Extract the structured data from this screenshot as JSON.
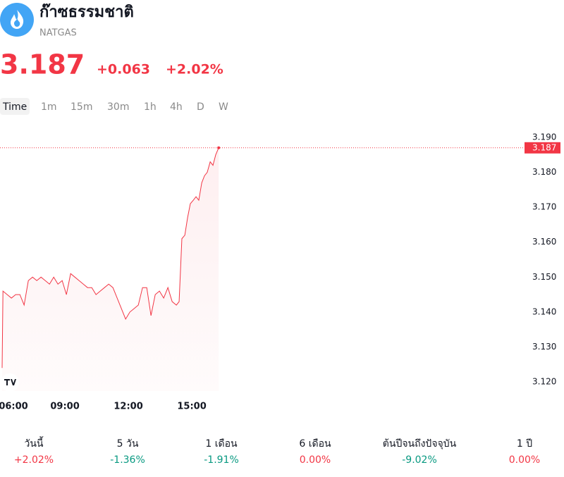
{
  "header": {
    "name": "ก๊าซธรรมชาติ",
    "symbol": "NATGAS",
    "price": "3.187",
    "change": "+0.063",
    "change_pct": "+2.02%"
  },
  "tabs": [
    "Time",
    "1m",
    "15m",
    "30m",
    "1h",
    "4h",
    "D",
    "W"
  ],
  "chart_data": {
    "type": "line",
    "color": "#f23645",
    "x": [
      6.03,
      6.07,
      6.27,
      6.47,
      6.67,
      6.87,
      7.07,
      7.27,
      7.47,
      7.67,
      7.87,
      8.07,
      8.27,
      8.47,
      8.67,
      8.87,
      9.07,
      9.27,
      9.47,
      9.67,
      9.87,
      10.07,
      10.27,
      10.47,
      10.67,
      10.87,
      11.07,
      11.27,
      11.47,
      11.67,
      11.87,
      12.07,
      12.27,
      12.47,
      12.67,
      12.87,
      13.07,
      13.27,
      13.47,
      13.67,
      13.87,
      14.07,
      14.27,
      14.4,
      14.53,
      14.67,
      14.8,
      14.93,
      15.07,
      15.2,
      15.33,
      15.47,
      15.6,
      15.73,
      15.87,
      16.0,
      16.13,
      16.27
    ],
    "values": [
      3.124,
      3.146,
      3.145,
      3.144,
      3.145,
      3.145,
      3.142,
      3.149,
      3.15,
      3.149,
      3.15,
      3.149,
      3.148,
      3.15,
      3.148,
      3.149,
      3.145,
      3.151,
      3.15,
      3.149,
      3.148,
      3.147,
      3.147,
      3.145,
      3.146,
      3.147,
      3.148,
      3.147,
      3.144,
      3.141,
      3.138,
      3.14,
      3.141,
      3.142,
      3.147,
      3.147,
      3.139,
      3.145,
      3.146,
      3.144,
      3.147,
      3.143,
      3.142,
      3.143,
      3.161,
      3.162,
      3.167,
      3.171,
      3.172,
      3.173,
      3.172,
      3.177,
      3.179,
      3.18,
      3.183,
      3.182,
      3.185,
      3.187
    ],
    "xlim": [
      5.93,
      30.6
    ],
    "xticks": [
      {
        "value": 6,
        "label": "06:00"
      },
      {
        "value": 9,
        "label": "09:00"
      },
      {
        "value": 12,
        "label": "12:00"
      },
      {
        "value": 15,
        "label": "15:00"
      }
    ],
    "ylim": [
      3.1174,
      3.192
    ],
    "yticks": [
      {
        "value": 3.12,
        "label": "3.120"
      },
      {
        "value": 3.13,
        "label": "3.130"
      },
      {
        "value": 3.14,
        "label": "3.140"
      },
      {
        "value": 3.15,
        "label": "3.150"
      },
      {
        "value": 3.16,
        "label": "3.160"
      },
      {
        "value": 3.17,
        "label": "3.170"
      },
      {
        "value": 3.18,
        "label": "3.180"
      },
      {
        "value": 3.19,
        "label": "3.190"
      }
    ],
    "price_line": {
      "value": 3.187,
      "label": "3.187"
    }
  },
  "performance": [
    {
      "label": "วันนี้",
      "value": "+2.02%",
      "color": "#f23645"
    },
    {
      "label": "5 วัน",
      "value": "-1.36%",
      "color": "#089981"
    },
    {
      "label": "1 เดือน",
      "value": "-1.91%",
      "color": "#089981"
    },
    {
      "label": "6 เดือน",
      "value": "0.00%",
      "color": "#f23645"
    },
    {
      "label": "ต้นปีจนถึงปัจจุบัน",
      "value": "-9.02%",
      "color": "#089981"
    },
    {
      "label": "1 ปี",
      "value": "0.00%",
      "color": "#f23645"
    }
  ]
}
